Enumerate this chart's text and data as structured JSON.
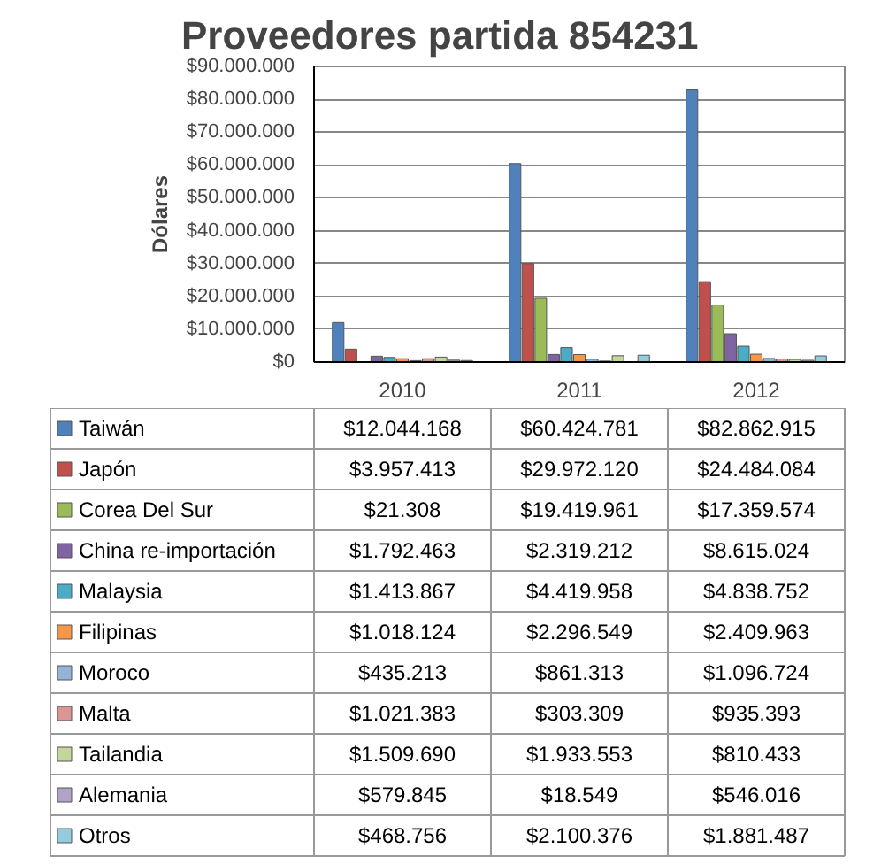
{
  "chart_data": {
    "type": "bar",
    "title": "Proveedores partida 854231",
    "ylabel": "Dólares",
    "categories": [
      "2010",
      "2011",
      "2012"
    ],
    "ylim": [
      0,
      90000000
    ],
    "yticks": [
      {
        "value": 0,
        "label": "$0"
      },
      {
        "value": 10000000,
        "label": "$10.000.000"
      },
      {
        "value": 20000000,
        "label": "$20.000.000"
      },
      {
        "value": 30000000,
        "label": "$30.000.000"
      },
      {
        "value": 40000000,
        "label": "$40.000.000"
      },
      {
        "value": 50000000,
        "label": "$50.000.000"
      },
      {
        "value": 60000000,
        "label": "$60.000.000"
      },
      {
        "value": 70000000,
        "label": "$70.000.000"
      },
      {
        "value": 80000000,
        "label": "$80.000.000"
      },
      {
        "value": 90000000,
        "label": "$90.000.000"
      }
    ],
    "grid": "y",
    "legend": "bottom",
    "series": [
      {
        "name": "Taiwán",
        "color": "#4f81bd",
        "values": [
          12044168,
          60424781,
          82862915
        ],
        "value_labels": [
          "$12.044.168",
          "$60.424.781",
          "$82.862.915"
        ]
      },
      {
        "name": "Japón",
        "color": "#c0504d",
        "values": [
          3957413,
          29972120,
          24484084
        ],
        "value_labels": [
          "$3.957.413",
          "$29.972.120",
          "$24.484.084"
        ]
      },
      {
        "name": "Corea Del Sur",
        "color": "#9bbb59",
        "values": [
          21308,
          19419961,
          17359574
        ],
        "value_labels": [
          "$21.308",
          "$19.419.961",
          "$17.359.574"
        ]
      },
      {
        "name": "China re-importación",
        "color": "#8064a2",
        "values": [
          1792463,
          2319212,
          8615024
        ],
        "value_labels": [
          "$1.792.463",
          "$2.319.212",
          "$8.615.024"
        ]
      },
      {
        "name": "Malaysia",
        "color": "#4bacc6",
        "values": [
          1413867,
          4419958,
          4838752
        ],
        "value_labels": [
          "$1.413.867",
          "$4.419.958",
          "$4.838.752"
        ]
      },
      {
        "name": "Filipinas",
        "color": "#f79646",
        "values": [
          1018124,
          2296549,
          2409963
        ],
        "value_labels": [
          "$1.018.124",
          "$2.296.549",
          "$2.409.963"
        ]
      },
      {
        "name": "Moroco",
        "color": "#95b3d7",
        "values": [
          435213,
          861313,
          1096724
        ],
        "value_labels": [
          "$435.213",
          "$861.313",
          "$1.096.724"
        ]
      },
      {
        "name": "Malta",
        "color": "#d99694",
        "values": [
          1021383,
          303309,
          935393
        ],
        "value_labels": [
          "$1.021.383",
          "$303.309",
          "$935.393"
        ]
      },
      {
        "name": "Tailandia",
        "color": "#c3d69b",
        "values": [
          1509690,
          1933553,
          810433
        ],
        "value_labels": [
          "$1.509.690",
          "$1.933.553",
          "$810.433"
        ]
      },
      {
        "name": "Alemania",
        "color": "#b3a2c7",
        "values": [
          579845,
          18549,
          546016
        ],
        "value_labels": [
          "$579.845",
          "$18.549",
          "$546.016"
        ]
      },
      {
        "name": "Otros",
        "color": "#93cddd",
        "values": [
          468756,
          2100376,
          1881487
        ],
        "value_labels": [
          "$468.756",
          "$2.100.376",
          "$1.881.487"
        ]
      }
    ]
  }
}
